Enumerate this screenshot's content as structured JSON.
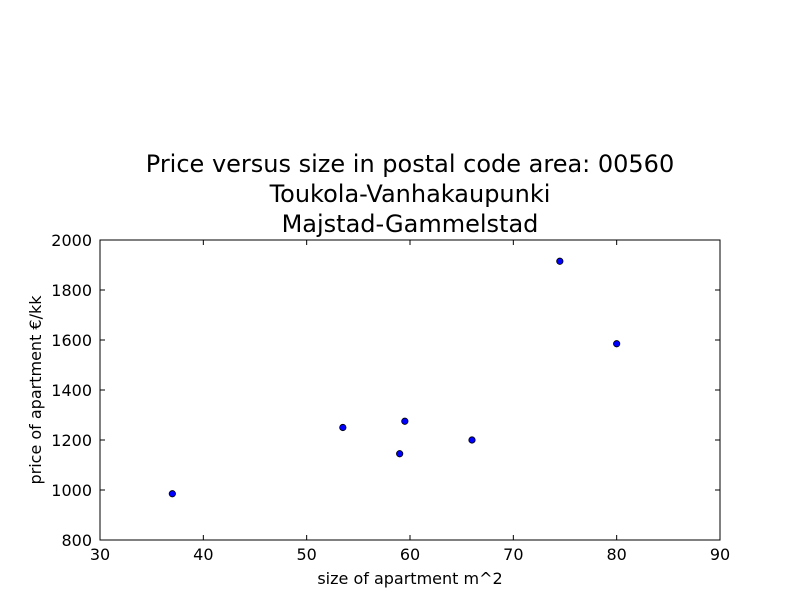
{
  "chart_data": {
    "type": "scatter",
    "title_lines": [
      "Price versus size in postal code area: 00560",
      "Toukola-Vanhakaupunki",
      "Majstad-Gammelstad"
    ],
    "xlabel": "size of apartment m^2",
    "ylabel": "price of apartment €/kk",
    "xlim": [
      30,
      90
    ],
    "ylim": [
      800,
      2000
    ],
    "xticks": [
      30,
      40,
      50,
      60,
      70,
      80,
      90
    ],
    "yticks": [
      800,
      1000,
      1200,
      1400,
      1600,
      1800,
      2000
    ],
    "grid": false,
    "marker_color": "#0000ff",
    "marker_edge": "#000000",
    "points": [
      {
        "x": 37,
        "y": 985
      },
      {
        "x": 53.5,
        "y": 1250
      },
      {
        "x": 59,
        "y": 1145
      },
      {
        "x": 59.5,
        "y": 1275
      },
      {
        "x": 66,
        "y": 1200
      },
      {
        "x": 74.5,
        "y": 1915
      },
      {
        "x": 80,
        "y": 1585
      }
    ]
  }
}
